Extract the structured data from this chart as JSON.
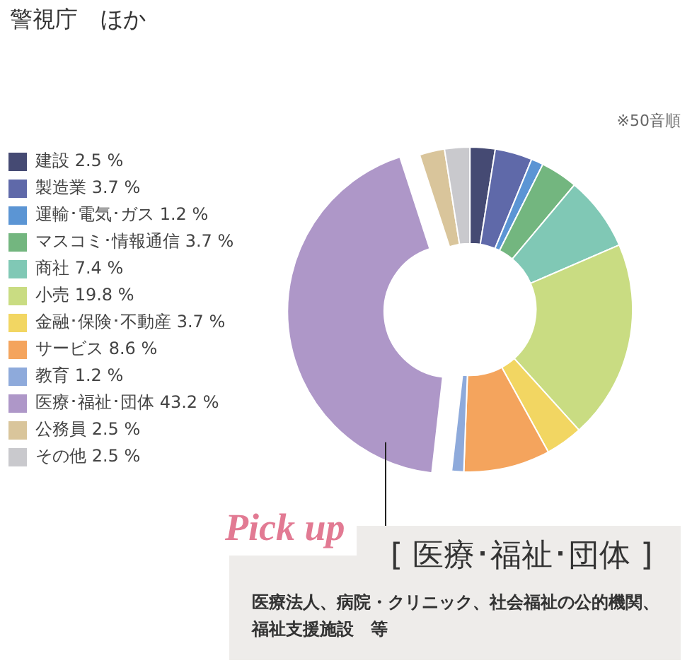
{
  "chart_data": {
    "type": "donut",
    "title": "警視庁　ほか",
    "categories": [
      "建設",
      "製造業",
      "運輸･電気･ガス",
      "マスコミ･情報通信",
      "商社",
      "小売",
      "金融･保険･不動産",
      "サービス",
      "教育",
      "医療･福祉･団体",
      "公務員",
      "その他"
    ],
    "values": [
      2.5,
      3.7,
      1.2,
      3.7,
      7.4,
      19.8,
      3.7,
      8.6,
      1.2,
      43.2,
      2.5,
      2.5
    ],
    "colors": [
      "#454a73",
      "#5f69a9",
      "#5b95d4",
      "#73b67f",
      "#80c8b5",
      "#c9dc82",
      "#f2d662",
      "#f4a45d",
      "#8eaadb",
      "#ae97c8",
      "#d9c59b",
      "#c9c9cd"
    ],
    "value_labels": [
      "2.5 %",
      "3.7 %",
      "1.2 %",
      "3.7 %",
      "7.4 %",
      "19.8 %",
      "3.7 %",
      "8.6 %",
      "1.2 %",
      "43.2 %",
      "2.5 %",
      "2.5 %"
    ],
    "legend": "left",
    "annotations": [
      "※50音順",
      "Pick up",
      {
        "text": "[ 医療･福祉･団体 ]",
        "x": "医療･福祉･団体"
      },
      "医療法人、病院・クリニック、社会福祉の公的機関、福祉支援施設　等"
    ]
  }
}
